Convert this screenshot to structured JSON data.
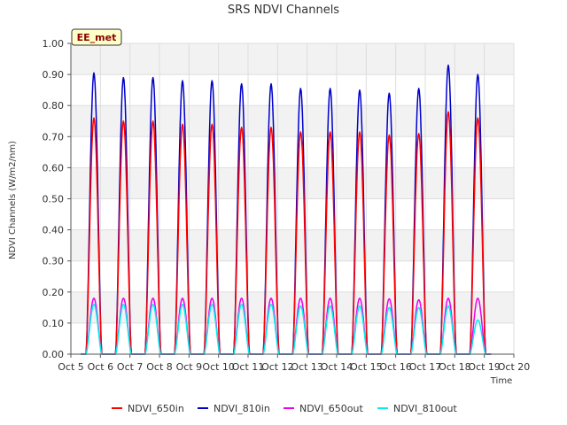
{
  "chart_data": {
    "type": "line",
    "title": "SRS NDVI Channels",
    "xlabel": "Time",
    "ylabel": "NDVI Channels (W/m2/nm)",
    "badge": "EE_met",
    "x_ticks": [
      "Oct 5",
      "Oct 6",
      "Oct 7",
      "Oct 8",
      "Oct 9",
      "Oct 10",
      "Oct 11",
      "Oct 12",
      "Oct 13",
      "Oct 14",
      "Oct 15",
      "Oct 16",
      "Oct 17",
      "Oct 18",
      "Oct 19",
      "Oct 20"
    ],
    "xlim": [
      5,
      20
    ],
    "ylim": [
      0,
      1.0
    ],
    "y_ticks": [
      "0.00",
      "0.10",
      "0.20",
      "0.30",
      "0.40",
      "0.50",
      "0.60",
      "0.70",
      "0.80",
      "0.90",
      "1.00"
    ],
    "grid": true,
    "legend_position": "bottom",
    "peak_days": [
      5.78,
      6.78,
      7.78,
      8.78,
      9.78,
      10.78,
      11.78,
      12.78,
      13.78,
      14.78,
      15.78,
      16.78,
      17.78,
      18.78
    ],
    "series": [
      {
        "name": "NDVI_650in",
        "color": "#ff0000",
        "peaks": [
          0.76,
          0.75,
          0.75,
          0.74,
          0.74,
          0.73,
          0.73,
          0.715,
          0.715,
          0.715,
          0.705,
          0.71,
          0.78,
          0.76
        ]
      },
      {
        "name": "NDVI_810in",
        "color": "#0000cc",
        "peaks": [
          0.905,
          0.89,
          0.89,
          0.88,
          0.88,
          0.87,
          0.87,
          0.855,
          0.855,
          0.85,
          0.84,
          0.855,
          0.93,
          0.9
        ]
      },
      {
        "name": "NDVI_650out",
        "color": "#ee00ee",
        "peaks": [
          0.18,
          0.18,
          0.18,
          0.18,
          0.18,
          0.18,
          0.18,
          0.18,
          0.18,
          0.18,
          0.178,
          0.175,
          0.18,
          0.18
        ]
      },
      {
        "name": "NDVI_810out",
        "color": "#00eeee",
        "peaks": [
          0.16,
          0.16,
          0.16,
          0.16,
          0.16,
          0.16,
          0.16,
          0.155,
          0.155,
          0.155,
          0.15,
          0.15,
          0.155,
          0.11
        ]
      }
    ]
  }
}
